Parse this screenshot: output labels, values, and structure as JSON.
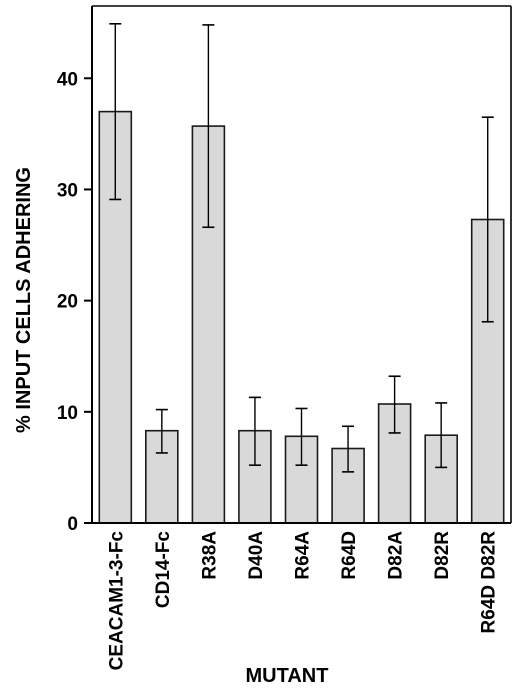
{
  "chart_data": {
    "type": "bar",
    "title": "",
    "xlabel": "MUTANT",
    "ylabel": "% INPUT CELLS ADHERING",
    "categories": [
      "CEACAM1-3-Fc",
      "CD14-Fc",
      "R38A",
      "D40A",
      "R64A",
      "R64D",
      "D82A",
      "D82R",
      "R64D D82R"
    ],
    "values": [
      37.0,
      8.3,
      35.7,
      8.3,
      7.8,
      6.7,
      10.7,
      7.9,
      27.3
    ],
    "error_high": [
      44.9,
      10.2,
      44.8,
      11.3,
      10.3,
      8.7,
      13.2,
      10.8,
      36.5
    ],
    "error_low": [
      29.1,
      6.3,
      26.6,
      5.2,
      5.2,
      4.6,
      8.1,
      5.0,
      18.1
    ],
    "yticks": [
      0,
      10,
      20,
      30,
      40
    ],
    "ylim": [
      0,
      46.5
    ],
    "grid": false,
    "colors": {
      "bar_fill": "#d9d9d9",
      "bar_stroke": "#1a1a1a",
      "axis": "#000000",
      "background": "#ffffff"
    }
  }
}
